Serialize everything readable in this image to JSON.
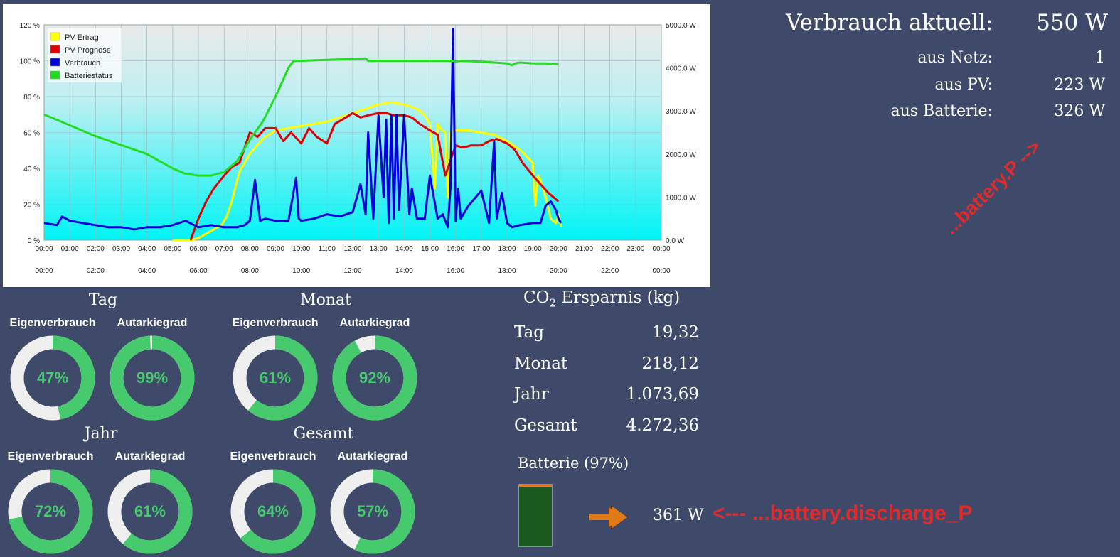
{
  "chart_data": {
    "type": "line",
    "legend": [
      {
        "name": "PV Ertrag",
        "color": "#ffff00"
      },
      {
        "name": "PV Prognose",
        "color": "#e00000"
      },
      {
        "name": "Verbrauch",
        "color": "#0000dd"
      },
      {
        "name": "Batteriestatus",
        "color": "#22dd22"
      }
    ],
    "legend_position": "top-left",
    "x_ticks": [
      "00:00",
      "01:00",
      "02:00",
      "03:00",
      "04:00",
      "05:00",
      "06:00",
      "07:00",
      "08:00",
      "09:00",
      "10:00",
      "11:00",
      "12:00",
      "13:00",
      "14:00",
      "15:00",
      "16:00",
      "17:00",
      "18:00",
      "19:00",
      "20:00",
      "21:00",
      "22:00",
      "23:00",
      "00:00"
    ],
    "x2_ticks": [
      "00:00",
      "02:00",
      "04:00",
      "06:00",
      "08:00",
      "10:00",
      "12:00",
      "14:00",
      "16:00",
      "18:00",
      "20:00",
      "22:00",
      "00:00"
    ],
    "y_left_ticks": [
      "0 %",
      "20 %",
      "40 %",
      "60 %",
      "80 %",
      "100 %",
      "120 %"
    ],
    "y_right_ticks": [
      "0.0 W",
      "1000.0 W",
      "2000.0 W",
      "3000.0 W",
      "4000.0 W",
      "5000.0 W"
    ],
    "ylim_left": [
      0,
      120
    ],
    "ylim_right": [
      0,
      5000
    ],
    "xlim": [
      0,
      24
    ],
    "grid": true,
    "series": [
      {
        "name": "PV Ertrag",
        "axis": "right",
        "color": "#ffff00",
        "x": [
          5.0,
          5.7,
          6.0,
          6.3,
          6.6,
          6.9,
          7.1,
          7.3,
          7.6,
          8.0,
          8.5,
          9.0,
          9.5,
          10.0,
          10.5,
          11.0,
          11.5,
          12.0,
          12.5,
          13.0,
          13.5,
          14.0,
          14.5,
          14.8,
          15.0,
          15.2,
          15.3,
          15.4,
          15.6,
          15.7,
          15.8,
          16.0,
          16.5,
          17.0,
          17.5,
          18.0,
          18.5,
          19.0,
          19.1,
          19.2,
          19.3,
          19.5,
          19.7,
          19.9,
          20.0,
          20.1
        ],
        "y": [
          0,
          0,
          50,
          150,
          250,
          350,
          550,
          900,
          1600,
          2000,
          2350,
          2550,
          2600,
          2650,
          2700,
          2750,
          2850,
          2950,
          3050,
          3150,
          3200,
          3150,
          3050,
          2900,
          2700,
          1200,
          2700,
          2600,
          2500,
          1000,
          2500,
          2550,
          2550,
          2500,
          2450,
          2300,
          2100,
          1800,
          800,
          1500,
          1400,
          1000,
          500,
          400,
          600,
          300
        ]
      },
      {
        "name": "PV Prognose",
        "axis": "right",
        "color": "#e00000",
        "x": [
          5.7,
          6.0,
          6.3,
          6.6,
          7.0,
          7.3,
          7.6,
          8.0,
          8.3,
          8.6,
          9.0,
          9.3,
          9.6,
          10.0,
          10.3,
          10.6,
          11.0,
          11.3,
          11.6,
          12.0,
          12.3,
          12.6,
          13.0,
          13.3,
          13.6,
          14.0,
          14.3,
          14.6,
          15.0,
          15.3,
          15.6,
          16.0,
          16.3,
          16.6,
          17.0,
          17.3,
          17.6,
          18.0,
          18.3,
          18.6,
          19.0,
          19.3,
          19.6,
          20.0
        ],
        "y": [
          0,
          500,
          900,
          1200,
          1500,
          1700,
          1800,
          2500,
          2400,
          2600,
          2600,
          2300,
          2500,
          2250,
          2600,
          2400,
          2250,
          2700,
          2800,
          2950,
          2850,
          2900,
          2950,
          2950,
          2900,
          2900,
          2850,
          2700,
          2550,
          2450,
          1500,
          2200,
          2150,
          2200,
          2200,
          2300,
          2350,
          2250,
          2100,
          1800,
          1500,
          1300,
          1100,
          900
        ]
      },
      {
        "name": "Verbrauch",
        "axis": "right",
        "color": "#0000dd",
        "x": [
          0.0,
          0.5,
          0.7,
          1.0,
          1.5,
          2.0,
          2.5,
          3.0,
          3.5,
          4.0,
          4.5,
          5.0,
          5.5,
          6.0,
          6.5,
          7.0,
          7.5,
          7.8,
          8.0,
          8.2,
          8.4,
          8.6,
          9.0,
          9.5,
          9.8,
          9.9,
          10.0,
          10.5,
          11.0,
          11.5,
          12.0,
          12.3,
          12.5,
          12.6,
          12.8,
          13.0,
          13.2,
          13.3,
          13.4,
          13.5,
          13.6,
          13.7,
          13.8,
          14.0,
          14.2,
          14.3,
          14.5,
          14.8,
          15.0,
          15.3,
          15.5,
          15.7,
          15.8,
          15.9,
          16.0,
          16.1,
          16.2,
          16.5,
          17.0,
          17.3,
          17.5,
          17.6,
          17.8,
          18.0,
          18.2,
          18.5,
          19.0,
          19.3,
          19.5,
          19.7,
          19.9,
          20.0,
          20.1
        ],
        "y": [
          400,
          350,
          550,
          450,
          400,
          350,
          300,
          300,
          250,
          300,
          300,
          350,
          450,
          300,
          350,
          300,
          300,
          350,
          450,
          1400,
          450,
          500,
          450,
          450,
          1450,
          500,
          450,
          500,
          600,
          550,
          650,
          1300,
          600,
          2500,
          500,
          2900,
          1000,
          2800,
          400,
          2900,
          500,
          2900,
          700,
          2900,
          600,
          1200,
          500,
          500,
          1500,
          500,
          600,
          300,
          1200,
          4900,
          450,
          1200,
          500,
          800,
          1150,
          400,
          2300,
          500,
          1100,
          400,
          300,
          350,
          400,
          400,
          800,
          900,
          700,
          500,
          400
        ]
      },
      {
        "name": "Batteriestatus",
        "axis": "left",
        "color": "#22dd22",
        "x": [
          0.0,
          0.5,
          1.0,
          2.0,
          3.0,
          4.0,
          4.5,
          5.0,
          5.5,
          6.0,
          6.5,
          7.0,
          7.5,
          8.0,
          8.5,
          9.0,
          9.5,
          9.7,
          10.0,
          11.0,
          12.0,
          12.5,
          12.6,
          13.0,
          14.0,
          15.0,
          15.5,
          15.9,
          16.0,
          16.2,
          17.0,
          17.5,
          18.0,
          18.2,
          18.3,
          18.5,
          19.0,
          19.5,
          20.0
        ],
        "y": [
          70,
          67,
          64,
          58,
          53,
          48,
          44,
          40,
          37,
          36,
          36,
          38,
          44,
          56,
          66,
          80,
          96,
          100,
          100,
          100.5,
          101,
          101.3,
          100,
          100,
          100,
          100,
          100,
          100,
          99.5,
          100,
          99.5,
          99,
          98.5,
          97.5,
          98.5,
          99,
          98.5,
          98.5,
          98
        ]
      }
    ]
  },
  "header": {
    "title": "Verbrauch aktuell:",
    "value": "550 W",
    "rows": [
      {
        "label": "aus Netz:",
        "value": "1"
      },
      {
        "label": "aus PV:",
        "value": "223 W"
      },
      {
        "label": "aus Batterie:",
        "value": "326 W"
      }
    ]
  },
  "annotations": {
    "battery_p": "...battery.P -->",
    "discharge": "<--- ...battery.discharge_P"
  },
  "groups": [
    {
      "title": "Tag",
      "items": [
        {
          "label": "Eigenverbrauch",
          "value": 47,
          "text": "47%"
        },
        {
          "label": "Autarkiegrad",
          "value": 99,
          "text": "99%"
        }
      ]
    },
    {
      "title": "Monat",
      "items": [
        {
          "label": "Eigenverbrauch",
          "value": 61,
          "text": "61%"
        },
        {
          "label": "Autarkiegrad",
          "value": 92,
          "text": "92%"
        }
      ]
    },
    {
      "title": "Jahr",
      "items": [
        {
          "label": "Eigenverbrauch",
          "value": 72,
          "text": "72%"
        },
        {
          "label": "Autarkiegrad",
          "value": 61,
          "text": "61%"
        }
      ]
    },
    {
      "title": "Gesamt",
      "items": [
        {
          "label": "Eigenverbrauch",
          "value": 64,
          "text": "64%"
        },
        {
          "label": "Autarkiegrad",
          "value": 57,
          "text": "57%"
        }
      ]
    }
  ],
  "co2": {
    "title_prefix": "CO",
    "title_sub": "2",
    "title_suffix": " Ersparnis (kg)",
    "rows": [
      {
        "label": "Tag",
        "value": "19,32"
      },
      {
        "label": "Monat",
        "value": "218,12"
      },
      {
        "label": "Jahr",
        "value": "1.073,69"
      },
      {
        "label": "Gesamt",
        "value": "4.272,36"
      }
    ]
  },
  "battery": {
    "title": "Batterie (97%)",
    "level": 0.97,
    "power": "361 W"
  },
  "colors": {
    "background": "#3f4a6b",
    "donut_fill": "#47c96e",
    "donut_track": "#efefef",
    "battery_fill": "#1b5a1f",
    "arrow": "#e07a17",
    "annotation": "#e02b2b"
  }
}
